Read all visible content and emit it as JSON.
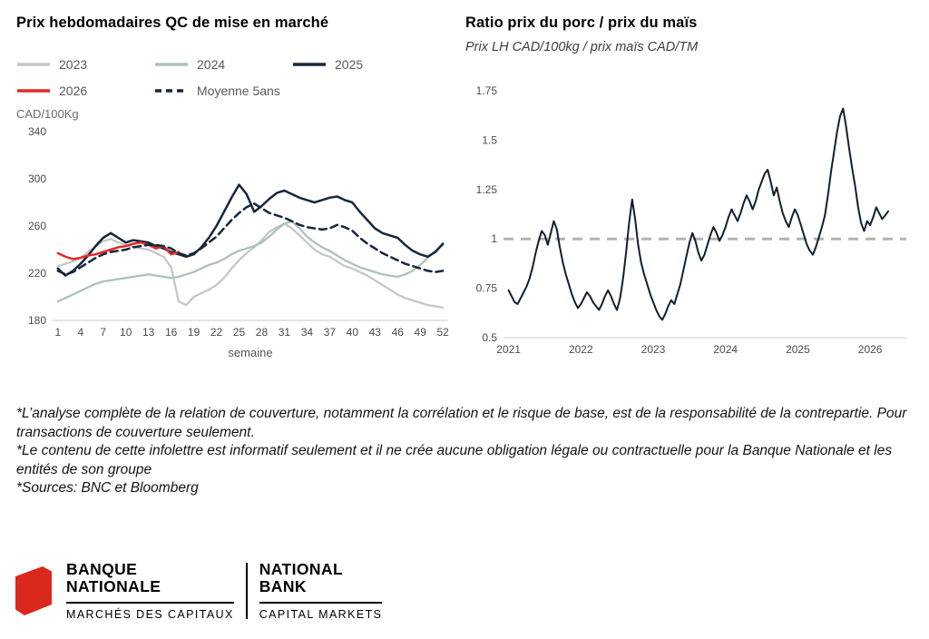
{
  "page": {
    "background": "#ffffff"
  },
  "chart_data": [
    {
      "type": "line",
      "title": "Prix hebdomadaires QC de mise en marché",
      "unit": "CAD/100Kg",
      "xlabel": "semaine",
      "ylim": [
        180,
        340
      ],
      "yticks": [
        180,
        220,
        260,
        300,
        340
      ],
      "xlim": [
        0.3,
        52.7
      ],
      "xticks": [
        1,
        4,
        7,
        10,
        13,
        16,
        19,
        22,
        25,
        28,
        31,
        34,
        37,
        40,
        43,
        46,
        49,
        52
      ],
      "x_start": 1,
      "x_step": 1,
      "grid": false,
      "legend_position": "top",
      "series": [
        {
          "name": "2023",
          "color": "#c6c6c6",
          "width": 2.3,
          "values": [
            226,
            228,
            230,
            233,
            238,
            243,
            247,
            249,
            246,
            244,
            242,
            241,
            240,
            237,
            234,
            225,
            196,
            193,
            200,
            203,
            206,
            210,
            216,
            224,
            231,
            237,
            242,
            248,
            255,
            259,
            262,
            258,
            252,
            246,
            240,
            236,
            234,
            230,
            226,
            224,
            221,
            218,
            214,
            210,
            206,
            202,
            199,
            197,
            195,
            193,
            192,
            191
          ]
        },
        {
          "name": "2024",
          "color": "#abc3b8",
          "width": 2.3,
          "values": [
            196,
            199,
            202,
            205,
            208,
            211,
            213,
            214,
            215,
            216,
            217,
            218,
            219,
            218,
            217,
            216,
            217,
            219,
            221,
            224,
            227,
            229,
            232,
            236,
            239,
            241,
            243,
            246,
            251,
            257,
            262,
            264,
            258,
            251,
            246,
            242,
            239,
            235,
            231,
            228,
            225,
            223,
            221,
            219,
            218,
            217,
            219,
            222,
            227,
            233,
            239,
            244
          ]
        },
        {
          "name": "2025",
          "color": "#16273b",
          "width": 2.5,
          "values": [
            224,
            218,
            222,
            228,
            235,
            243,
            250,
            254,
            250,
            246,
            248,
            247,
            246,
            243,
            241,
            238,
            236,
            234,
            236,
            242,
            250,
            260,
            272,
            284,
            295,
            287,
            272,
            277,
            283,
            288,
            290,
            287,
            284,
            282,
            280,
            282,
            284,
            285,
            282,
            280,
            272,
            265,
            258,
            254,
            252,
            250,
            244,
            239,
            236,
            234,
            238,
            245
          ]
        },
        {
          "name": "2026",
          "color": "#e02b27",
          "width": 2.5,
          "values": [
            237,
            234,
            232,
            233,
            235,
            236,
            238,
            240,
            242,
            243,
            245,
            246,
            244,
            241,
            243,
            236,
            238
          ]
        },
        {
          "name": "Moyenne 5ans",
          "color": "#16273b",
          "width": 2.5,
          "dash": "8 5",
          "values": [
            222,
            219,
            221,
            225,
            229,
            233,
            236,
            238,
            239,
            240,
            242,
            243,
            244,
            244,
            243,
            241,
            237,
            235,
            237,
            241,
            246,
            251,
            258,
            265,
            271,
            276,
            279,
            275,
            271,
            269,
            267,
            264,
            261,
            259,
            258,
            257,
            258,
            261,
            259,
            256,
            250,
            245,
            241,
            237,
            234,
            231,
            228,
            226,
            224,
            222,
            221,
            222
          ]
        }
      ]
    },
    {
      "type": "line",
      "title": "Ratio prix du porc / prix du maïs",
      "subtitle": "Prix LH CAD/100kg / prix maïs CAD/TM",
      "ylim": [
        0.5,
        1.75
      ],
      "yticks": [
        0.5,
        0.75,
        1,
        1.25,
        1.5,
        1.75
      ],
      "xlim": [
        2020.93,
        2026.5
      ],
      "xticks": [
        2021,
        2022,
        2023,
        2024,
        2025,
        2026
      ],
      "x_start": 2021,
      "x_step": 0.0416667,
      "ref_line": 1,
      "grid": false,
      "series": [
        {
          "name": "ratio porc/maïs",
          "color": "#10202e",
          "width": 2,
          "values": [
            0.74,
            0.71,
            0.68,
            0.67,
            0.7,
            0.73,
            0.76,
            0.8,
            0.86,
            0.93,
            0.99,
            1.04,
            1.02,
            0.97,
            1.03,
            1.09,
            1.05,
            0.96,
            0.88,
            0.82,
            0.77,
            0.72,
            0.68,
            0.65,
            0.67,
            0.7,
            0.73,
            0.71,
            0.68,
            0.66,
            0.64,
            0.67,
            0.71,
            0.74,
            0.71,
            0.67,
            0.64,
            0.7,
            0.8,
            0.93,
            1.08,
            1.2,
            1.1,
            0.97,
            0.88,
            0.82,
            0.77,
            0.72,
            0.68,
            0.64,
            0.61,
            0.59,
            0.62,
            0.66,
            0.69,
            0.67,
            0.72,
            0.77,
            0.84,
            0.91,
            0.98,
            1.03,
            0.99,
            0.93,
            0.89,
            0.92,
            0.97,
            1.02,
            1.06,
            1.03,
            0.99,
            1.02,
            1.06,
            1.11,
            1.15,
            1.12,
            1.09,
            1.13,
            1.18,
            1.22,
            1.19,
            1.15,
            1.19,
            1.25,
            1.29,
            1.33,
            1.35,
            1.29,
            1.22,
            1.26,
            1.19,
            1.13,
            1.09,
            1.06,
            1.11,
            1.15,
            1.12,
            1.07,
            1.02,
            0.97,
            0.94,
            0.92,
            0.96,
            1.01,
            1.06,
            1.12,
            1.22,
            1.34,
            1.44,
            1.54,
            1.62,
            1.66,
            1.57,
            1.46,
            1.36,
            1.27,
            1.16,
            1.08,
            1.04,
            1.09,
            1.07,
            1.11,
            1.16,
            1.13,
            1.1,
            1.12,
            1.14
          ]
        }
      ]
    }
  ],
  "footnotes": [
    "*L’analyse complète de la relation de couverture, notamment la corrélation et le risque de base, est de la responsabilité de la contrepartie. Pour transactions de couverture seulement.",
    "*Le contenu de cette infolettre est informatif seulement et il ne crée aucune obligation légale ou contractuelle pour la Banque Nationale et les entités de son groupe",
    "*Sources: BNC et Bloomberg"
  ],
  "logo": {
    "brand_color": "#da291c",
    "fr": {
      "line1": "BANQUE",
      "line2": "NATIONALE",
      "sub": "MARCHÉS DES CAPITAUX"
    },
    "en": {
      "line1": "NATIONAL",
      "line2": "BANK",
      "sub": "CAPITAL MARKETS"
    }
  }
}
